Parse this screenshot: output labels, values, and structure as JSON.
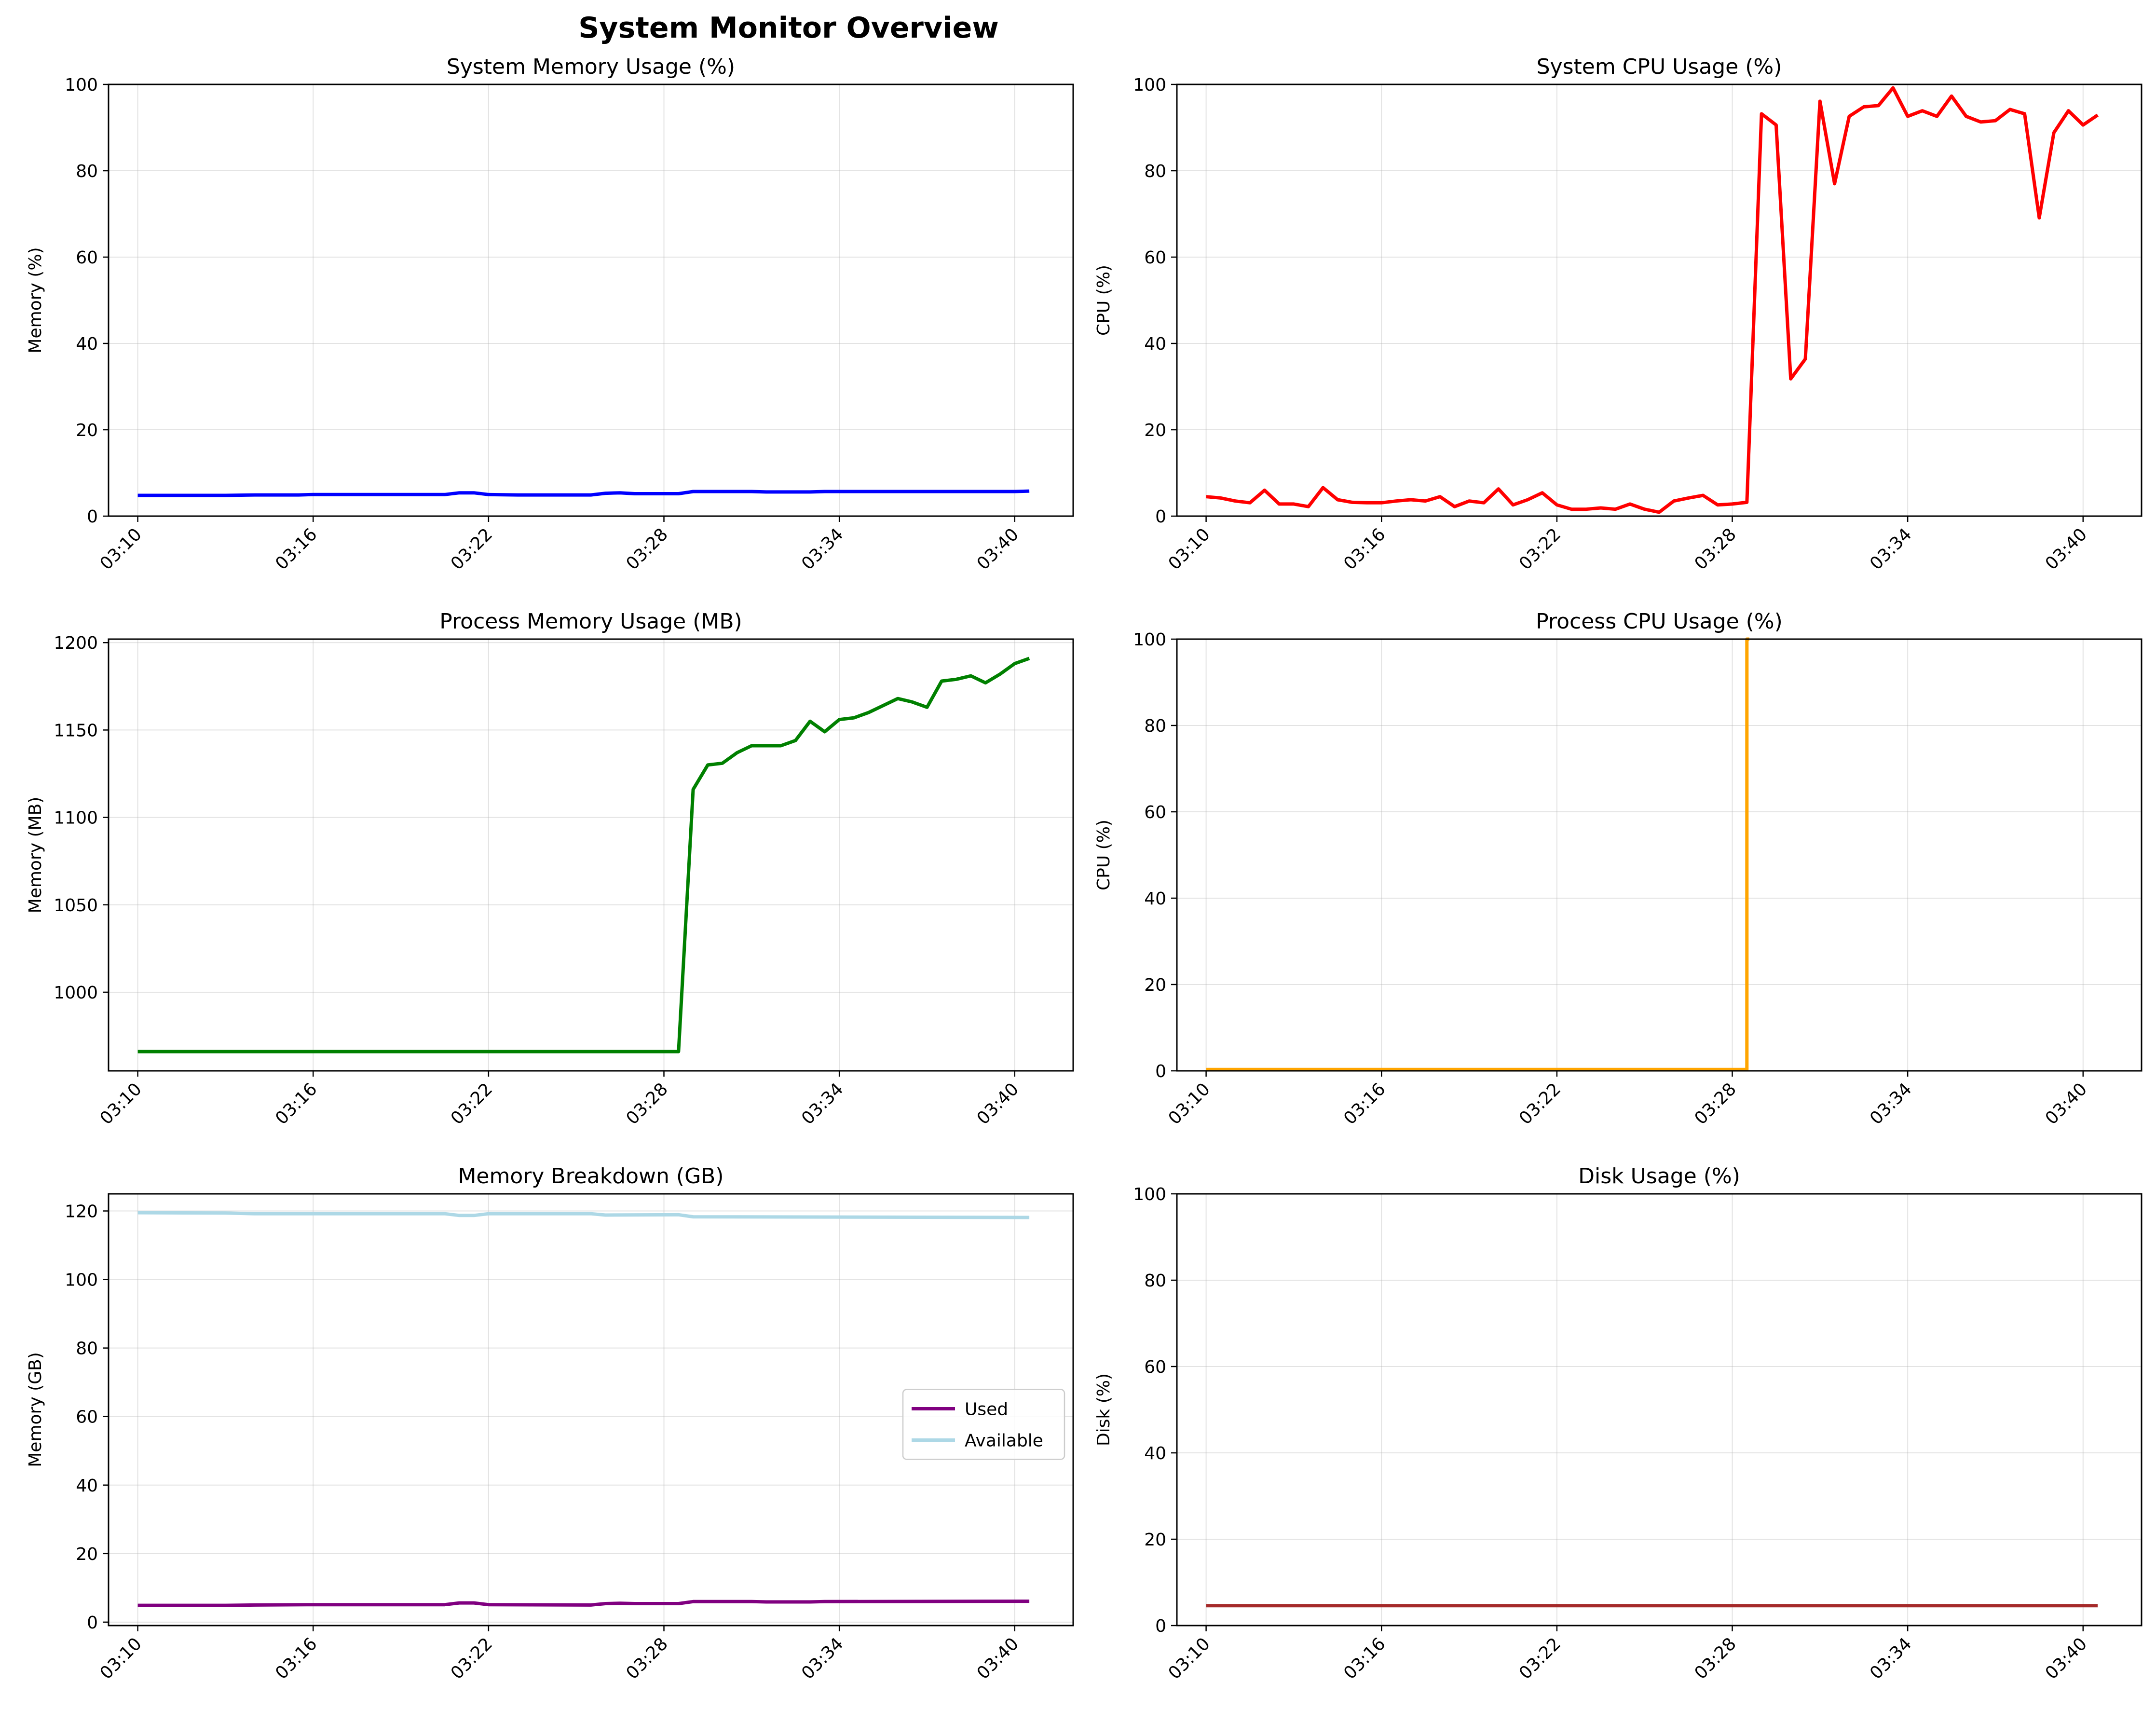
{
  "figure": {
    "title": "System Monitor Overview"
  },
  "chart_data": [
    {
      "id": "sys-mem",
      "type": "line",
      "title": "System Memory Usage (%)",
      "ylabel": "Memory (%)",
      "ylim": [
        0,
        100
      ],
      "yticks": [
        0,
        20,
        40,
        60,
        80,
        100
      ],
      "xlim": [
        "03:09:00",
        "03:42:00"
      ],
      "xticks": [
        "03:10",
        "03:16",
        "03:22",
        "03:28",
        "03:34",
        "03:40"
      ],
      "grid": true,
      "series": [
        {
          "color": "#0000ff",
          "points": [
            [
              "03:10:00",
              4.8
            ],
            [
              "03:13:00",
              4.8
            ],
            [
              "03:14:00",
              4.9
            ],
            [
              "03:15:30",
              4.9
            ],
            [
              "03:16:00",
              5.0
            ],
            [
              "03:20:30",
              5.0
            ],
            [
              "03:21:00",
              5.4
            ],
            [
              "03:21:30",
              5.4
            ],
            [
              "03:22:00",
              5.0
            ],
            [
              "03:23:00",
              4.9
            ],
            [
              "03:25:30",
              4.9
            ],
            [
              "03:26:00",
              5.3
            ],
            [
              "03:26:30",
              5.4
            ],
            [
              "03:27:00",
              5.2
            ],
            [
              "03:28:30",
              5.2
            ],
            [
              "03:29:00",
              5.7
            ],
            [
              "03:31:00",
              5.7
            ],
            [
              "03:31:30",
              5.6
            ],
            [
              "03:33:00",
              5.6
            ],
            [
              "03:33:30",
              5.7
            ],
            [
              "03:40:00",
              5.7
            ],
            [
              "03:40:30",
              5.8
            ]
          ]
        }
      ]
    },
    {
      "id": "sys-cpu",
      "type": "line",
      "title": "System CPU Usage (%)",
      "ylabel": "CPU (%)",
      "ylim": [
        0,
        100
      ],
      "yticks": [
        0,
        20,
        40,
        60,
        80,
        100
      ],
      "xlim": [
        "03:09:00",
        "03:42:00"
      ],
      "xticks": [
        "03:10",
        "03:16",
        "03:22",
        "03:28",
        "03:34",
        "03:40"
      ],
      "grid": true,
      "series": [
        {
          "color": "#ff0000",
          "points": [
            [
              "03:10:00",
              4.5
            ],
            [
              "03:10:30",
              4.2
            ],
            [
              "03:11:00",
              3.5
            ],
            [
              "03:11:30",
              3.1
            ],
            [
              "03:12:00",
              6.0
            ],
            [
              "03:12:30",
              2.8
            ],
            [
              "03:13:00",
              2.8
            ],
            [
              "03:13:30",
              2.2
            ],
            [
              "03:14:00",
              6.6
            ],
            [
              "03:14:30",
              3.8
            ],
            [
              "03:15:00",
              3.2
            ],
            [
              "03:15:30",
              3.1
            ],
            [
              "03:16:00",
              3.1
            ],
            [
              "03:16:30",
              3.5
            ],
            [
              "03:17:00",
              3.8
            ],
            [
              "03:17:30",
              3.5
            ],
            [
              "03:18:00",
              4.5
            ],
            [
              "03:18:30",
              2.2
            ],
            [
              "03:19:00",
              3.5
            ],
            [
              "03:19:30",
              3.1
            ],
            [
              "03:20:00",
              6.3
            ],
            [
              "03:20:30",
              2.6
            ],
            [
              "03:21:00",
              3.8
            ],
            [
              "03:21:30",
              5.4
            ],
            [
              "03:22:00",
              2.6
            ],
            [
              "03:22:30",
              1.6
            ],
            [
              "03:23:00",
              1.6
            ],
            [
              "03:23:30",
              1.9
            ],
            [
              "03:24:00",
              1.6
            ],
            [
              "03:24:30",
              2.8
            ],
            [
              "03:25:00",
              1.6
            ],
            [
              "03:25:30",
              0.9
            ],
            [
              "03:26:00",
              3.5
            ],
            [
              "03:26:30",
              4.2
            ],
            [
              "03:27:00",
              4.8
            ],
            [
              "03:27:30",
              2.6
            ],
            [
              "03:28:00",
              2.8
            ],
            [
              "03:28:30",
              3.2
            ],
            [
              "03:29:00",
              93.2
            ],
            [
              "03:29:30",
              90.6
            ],
            [
              "03:30:00",
              31.8
            ],
            [
              "03:30:30",
              36.4
            ],
            [
              "03:31:00",
              96.1
            ],
            [
              "03:31:30",
              77.0
            ],
            [
              "03:32:00",
              92.6
            ],
            [
              "03:32:30",
              94.8
            ],
            [
              "03:33:00",
              95.1
            ],
            [
              "03:33:30",
              99.2
            ],
            [
              "03:34:00",
              92.6
            ],
            [
              "03:34:30",
              93.9
            ],
            [
              "03:35:00",
              92.6
            ],
            [
              "03:35:30",
              97.3
            ],
            [
              "03:36:00",
              92.6
            ],
            [
              "03:36:30",
              91.3
            ],
            [
              "03:37:00",
              91.6
            ],
            [
              "03:37:30",
              94.2
            ],
            [
              "03:38:00",
              93.2
            ],
            [
              "03:38:30",
              69.1
            ],
            [
              "03:39:00",
              88.8
            ],
            [
              "03:39:30",
              93.9
            ],
            [
              "03:40:00",
              90.6
            ],
            [
              "03:40:30",
              92.9
            ]
          ]
        }
      ]
    },
    {
      "id": "proc-mem",
      "type": "line",
      "title": "Process Memory Usage (MB)",
      "ylabel": "Memory (MB)",
      "ylim": [
        955,
        1202
      ],
      "yticks": [
        1000,
        1050,
        1100,
        1150,
        1200
      ],
      "xlim": [
        "03:09:00",
        "03:42:00"
      ],
      "xticks": [
        "03:10",
        "03:16",
        "03:22",
        "03:28",
        "03:34",
        "03:40"
      ],
      "grid": true,
      "series": [
        {
          "color": "#008000",
          "points": [
            [
              "03:10:00",
              966
            ],
            [
              "03:28:30",
              966
            ],
            [
              "03:29:00",
              1116
            ],
            [
              "03:29:30",
              1130
            ],
            [
              "03:30:00",
              1131
            ],
            [
              "03:30:30",
              1137
            ],
            [
              "03:31:00",
              1141
            ],
            [
              "03:31:30",
              1141
            ],
            [
              "03:32:00",
              1141
            ],
            [
              "03:32:30",
              1144
            ],
            [
              "03:33:00",
              1155
            ],
            [
              "03:33:30",
              1149
            ],
            [
              "03:34:00",
              1156
            ],
            [
              "03:34:30",
              1157
            ],
            [
              "03:35:00",
              1160
            ],
            [
              "03:35:30",
              1164
            ],
            [
              "03:36:00",
              1168
            ],
            [
              "03:36:30",
              1166
            ],
            [
              "03:37:00",
              1163
            ],
            [
              "03:37:30",
              1178
            ],
            [
              "03:38:00",
              1179
            ],
            [
              "03:38:30",
              1181
            ],
            [
              "03:39:00",
              1177
            ],
            [
              "03:39:30",
              1182
            ],
            [
              "03:40:00",
              1188
            ],
            [
              "03:40:30",
              1191
            ]
          ]
        }
      ]
    },
    {
      "id": "proc-cpu",
      "type": "line",
      "title": "Process CPU Usage (%)",
      "ylabel": "CPU (%)",
      "ylim": [
        0,
        100
      ],
      "yticks": [
        0,
        20,
        40,
        60,
        80,
        100
      ],
      "xlim": [
        "03:09:00",
        "03:42:00"
      ],
      "xticks": [
        "03:10",
        "03:16",
        "03:22",
        "03:28",
        "03:34",
        "03:40"
      ],
      "grid": true,
      "series": [
        {
          "color": "#ffa500",
          "points": [
            [
              "03:10:00",
              0.3
            ],
            [
              "03:28:30",
              0.3
            ],
            [
              "03:28:30",
              100
            ],
            [
              "03:28:35",
              100
            ]
          ]
        }
      ]
    },
    {
      "id": "mem-breakdown",
      "type": "line",
      "title": "Memory Breakdown (GB)",
      "ylabel": "Memory (GB)",
      "ylim": [
        -1,
        125
      ],
      "yticks": [
        0,
        20,
        40,
        60,
        80,
        100,
        120
      ],
      "xlim": [
        "03:09:00",
        "03:42:00"
      ],
      "xticks": [
        "03:10",
        "03:16",
        "03:22",
        "03:28",
        "03:34",
        "03:40"
      ],
      "grid": true,
      "legend": "center-right",
      "series": [
        {
          "name": "Used",
          "color": "#800080",
          "points": [
            [
              "03:10:00",
              4.9
            ],
            [
              "03:13:00",
              4.9
            ],
            [
              "03:14:00",
              5.0
            ],
            [
              "03:16:00",
              5.1
            ],
            [
              "03:20:30",
              5.1
            ],
            [
              "03:21:00",
              5.6
            ],
            [
              "03:21:30",
              5.6
            ],
            [
              "03:22:00",
              5.1
            ],
            [
              "03:25:30",
              5.0
            ],
            [
              "03:26:00",
              5.4
            ],
            [
              "03:26:30",
              5.5
            ],
            [
              "03:27:00",
              5.4
            ],
            [
              "03:28:30",
              5.4
            ],
            [
              "03:29:00",
              6.0
            ],
            [
              "03:31:00",
              6.0
            ],
            [
              "03:31:30",
              5.9
            ],
            [
              "03:33:00",
              5.9
            ],
            [
              "03:33:30",
              6.0
            ],
            [
              "03:40:30",
              6.1
            ]
          ]
        },
        {
          "name": "Available",
          "color": "#add8e6",
          "points": [
            [
              "03:10:00",
              119.5
            ],
            [
              "03:13:00",
              119.4
            ],
            [
              "03:14:00",
              119.2
            ],
            [
              "03:20:30",
              119.2
            ],
            [
              "03:21:00",
              118.7
            ],
            [
              "03:21:30",
              118.7
            ],
            [
              "03:22:00",
              119.2
            ],
            [
              "03:25:30",
              119.2
            ],
            [
              "03:26:00",
              118.8
            ],
            [
              "03:28:30",
              118.9
            ],
            [
              "03:29:00",
              118.3
            ],
            [
              "03:40:30",
              118.1
            ]
          ]
        }
      ]
    },
    {
      "id": "disk",
      "type": "line",
      "title": "Disk Usage (%)",
      "ylabel": "Disk (%)",
      "ylim": [
        0,
        100
      ],
      "yticks": [
        0,
        20,
        40,
        60,
        80,
        100
      ],
      "xlim": [
        "03:09:00",
        "03:42:00"
      ],
      "xticks": [
        "03:10",
        "03:16",
        "03:22",
        "03:28",
        "03:34",
        "03:40"
      ],
      "grid": true,
      "series": [
        {
          "color": "#a52a2a",
          "points": [
            [
              "03:10:00",
              4.6
            ],
            [
              "03:40:30",
              4.6
            ]
          ]
        }
      ]
    }
  ]
}
